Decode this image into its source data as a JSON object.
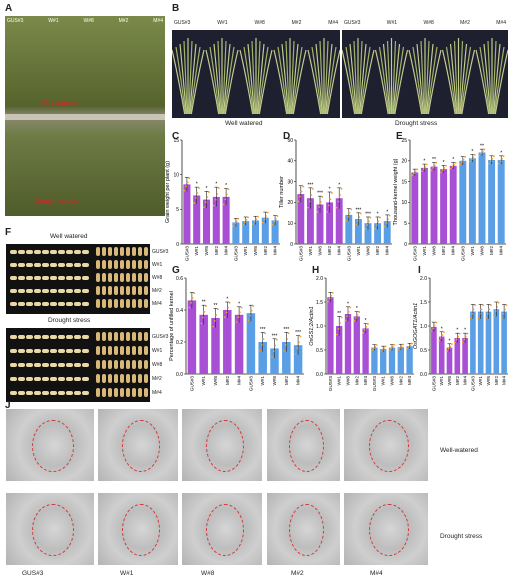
{
  "colors": {
    "well": "#a94fd6",
    "drought": "#5a9fe6",
    "field_top": "#6b7a3c",
    "photo_bg": "#1a1c2a",
    "kernel_bg": "#111111",
    "kernel": "#e9d8a6",
    "dot": "#f0a030"
  },
  "panel_letters": {
    "a": "A",
    "b": "B",
    "c": "C",
    "d": "D",
    "e": "E",
    "f": "F",
    "g": "G",
    "h": "H",
    "i": "I",
    "j": "J"
  },
  "panel_a": {
    "lines": [
      "GUS#3",
      "W#1",
      "W#8",
      "M#2",
      "M#4"
    ],
    "label_top": "Well watered",
    "label_bottom": "Drought stress"
  },
  "panel_b": {
    "lines": [
      "GUS#3",
      "W#1",
      "W#8",
      "M#2",
      "M#4"
    ],
    "caption_left": "Well watered",
    "caption_right": "Drought stress"
  },
  "panel_f": {
    "title_top": "Well watered",
    "title_bottom": "Drought stress",
    "lines": [
      "GUS#3",
      "W#1",
      "W#8",
      "M#2",
      "M#4"
    ]
  },
  "panel_j": {
    "row_labels": [
      "Well-watered",
      "Drought stress"
    ],
    "columns": [
      "GUS#3",
      "W#1",
      "W#8",
      "M#2",
      "M#4"
    ]
  },
  "chart_data": [
    {
      "panel": "C",
      "type": "bar",
      "ylabel": "Grain weight per plant (g)",
      "ylim": [
        0,
        15
      ],
      "yticks": [
        0,
        5,
        10,
        15
      ],
      "categories": [
        "GUS#3",
        "W#1",
        "W#8",
        "M#2",
        "M#4",
        "GUS#3",
        "W#1",
        "W#8",
        "M#2",
        "M#4"
      ],
      "values": [
        8.6,
        7.0,
        6.4,
        6.8,
        6.8,
        3.1,
        3.3,
        3.4,
        3.8,
        3.4
      ],
      "errors": [
        1.0,
        1.2,
        1.2,
        1.4,
        1.2,
        0.6,
        0.6,
        0.6,
        0.8,
        0.7
      ],
      "sig": [
        "",
        "*",
        "*",
        "*",
        "*",
        "",
        "",
        "",
        "",
        ""
      ]
    },
    {
      "panel": "D",
      "type": "bar",
      "ylabel": "Tiller number",
      "ylim": [
        0,
        50
      ],
      "yticks": [
        0,
        10,
        20,
        30,
        40,
        50
      ],
      "categories": [
        "GUS#3",
        "W#1",
        "W#8",
        "M#2",
        "M#4",
        "GUS#3",
        "W#1",
        "W#8",
        "M#2",
        "M#4"
      ],
      "values": [
        24,
        22,
        19,
        20,
        22,
        14,
        12,
        10,
        10,
        11
      ],
      "errors": [
        4,
        5,
        4,
        5,
        5,
        3,
        3,
        3,
        3,
        3
      ],
      "sig": [
        "",
        "***",
        "***",
        "*",
        "*",
        "",
        "***",
        "***",
        "*",
        "*"
      ]
    },
    {
      "panel": "E",
      "type": "bar",
      "ylabel": "Thousand-kernel weight (g)",
      "ylim": [
        0,
        25
      ],
      "yticks": [
        0,
        5,
        10,
        15,
        20,
        25
      ],
      "categories": [
        "GUS#3",
        "W#1",
        "W#8",
        "M#2",
        "M#4",
        "GUS#3",
        "W#1",
        "W#8",
        "M#2",
        "M#4"
      ],
      "values": [
        17.2,
        18.3,
        18.6,
        18.0,
        18.8,
        20.0,
        20.6,
        22.0,
        20.2,
        20.2
      ],
      "errors": [
        0.8,
        0.9,
        1.0,
        0.9,
        0.8,
        1.0,
        0.9,
        0.8,
        1.0,
        1.0
      ],
      "sig": [
        "",
        "*",
        "**",
        "*",
        "*",
        "",
        "*",
        "**",
        "",
        "*"
      ]
    },
    {
      "panel": "G",
      "type": "bar",
      "ylabel": "Percentage of unfilled kernel",
      "ylim": [
        0,
        0.6
      ],
      "yticks": [
        0.0,
        0.2,
        0.4,
        0.6
      ],
      "categories": [
        "GUS#3",
        "W#1",
        "W#8",
        "M#2",
        "M#4",
        "GUS#3",
        "W#1",
        "W#8",
        "M#2",
        "M#4"
      ],
      "values": [
        0.46,
        0.37,
        0.35,
        0.4,
        0.37,
        0.38,
        0.2,
        0.16,
        0.2,
        0.18
      ],
      "errors": [
        0.05,
        0.06,
        0.06,
        0.05,
        0.05,
        0.05,
        0.06,
        0.06,
        0.06,
        0.06
      ],
      "sig": [
        "",
        "**",
        "**",
        "*",
        "*",
        "",
        "***",
        "***",
        "***",
        "***"
      ]
    },
    {
      "panel": "H",
      "type": "bar",
      "ylabel": "OsGS1;2/Actin1",
      "ylim": [
        0,
        2.0
      ],
      "yticks": [
        0.0,
        0.5,
        1.0,
        1.5,
        2.0
      ],
      "categories": [
        "GUS#3",
        "W#1",
        "W#8",
        "M#2",
        "M#4",
        "GUS#3",
        "W#1",
        "W#8",
        "M#2",
        "M#4"
      ],
      "values": [
        1.6,
        1.0,
        1.25,
        1.2,
        0.95,
        0.55,
        0.52,
        0.55,
        0.56,
        0.58
      ],
      "errors": [
        0.1,
        0.2,
        0.15,
        0.1,
        0.1,
        0.06,
        0.06,
        0.06,
        0.06,
        0.06
      ],
      "sig": [
        "",
        "**",
        "*",
        "*",
        "*",
        "",
        "",
        "",
        "",
        ""
      ]
    },
    {
      "panel": "I",
      "type": "bar",
      "ylabel": "OsGOGAT1/Actin1",
      "ylim": [
        0,
        2.0
      ],
      "yticks": [
        0.0,
        0.5,
        1.0,
        1.5,
        2.0
      ],
      "categories": [
        "GUS#3",
        "W#1",
        "W#8",
        "M#2",
        "M#4",
        "GUS#3",
        "W#1",
        "W#8",
        "M#2",
        "M#4"
      ],
      "values": [
        0.98,
        0.78,
        0.55,
        0.75,
        0.75,
        1.3,
        1.3,
        1.3,
        1.35,
        1.3
      ],
      "errors": [
        0.1,
        0.1,
        0.08,
        0.1,
        0.1,
        0.15,
        0.15,
        0.15,
        0.15,
        0.15
      ],
      "sig": [
        "",
        "*",
        "*",
        "*",
        "*",
        "",
        "",
        "",
        "",
        ""
      ]
    }
  ]
}
